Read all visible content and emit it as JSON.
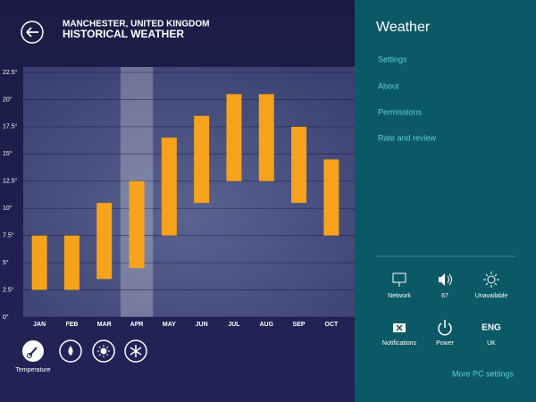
{
  "header": {
    "location": "MANCHESTER, UNITED KINGDOM",
    "title": "HISTORICAL WEATHER"
  },
  "chart_data": {
    "type": "floating-bar",
    "categories": [
      "JAN",
      "FEB",
      "MAR",
      "APR",
      "MAY",
      "JUN",
      "JUL",
      "AUG",
      "SEP",
      "OCT"
    ],
    "low": [
      2.5,
      2.5,
      3.5,
      4.5,
      7.5,
      10.5,
      12.5,
      12.5,
      10.5,
      7.5
    ],
    "high": [
      7.5,
      7.5,
      10.5,
      12.5,
      16.5,
      18.5,
      20.5,
      20.5,
      17.5,
      14.5
    ],
    "color": "#f7a21b",
    "highlight_index": 3,
    "ylim": [
      0,
      22.5
    ],
    "yticks": [
      {
        "value": 0,
        "label": "0°"
      },
      {
        "value": 2.5,
        "label": "2.5°"
      },
      {
        "value": 5,
        "label": "5°"
      },
      {
        "value": 7.5,
        "label": "7.5°"
      },
      {
        "value": 10,
        "label": "10°"
      },
      {
        "value": 12.5,
        "label": "12.5°"
      },
      {
        "value": 15,
        "label": "15°"
      },
      {
        "value": 17.5,
        "label": "17.5°"
      },
      {
        "value": 20,
        "label": "20°"
      },
      {
        "value": 22.5,
        "label": "22.5°"
      }
    ],
    "grid": true
  },
  "view_options": {
    "selected": "Temperature"
  },
  "charms": {
    "title": "Weather",
    "links": [
      "Settings",
      "About",
      "Permissions",
      "Rate and review"
    ],
    "tiles": [
      "Network",
      "67",
      "Unavailable",
      "Notifications",
      "Power",
      "UK"
    ],
    "language": "ENG",
    "footer": "More PC settings"
  }
}
